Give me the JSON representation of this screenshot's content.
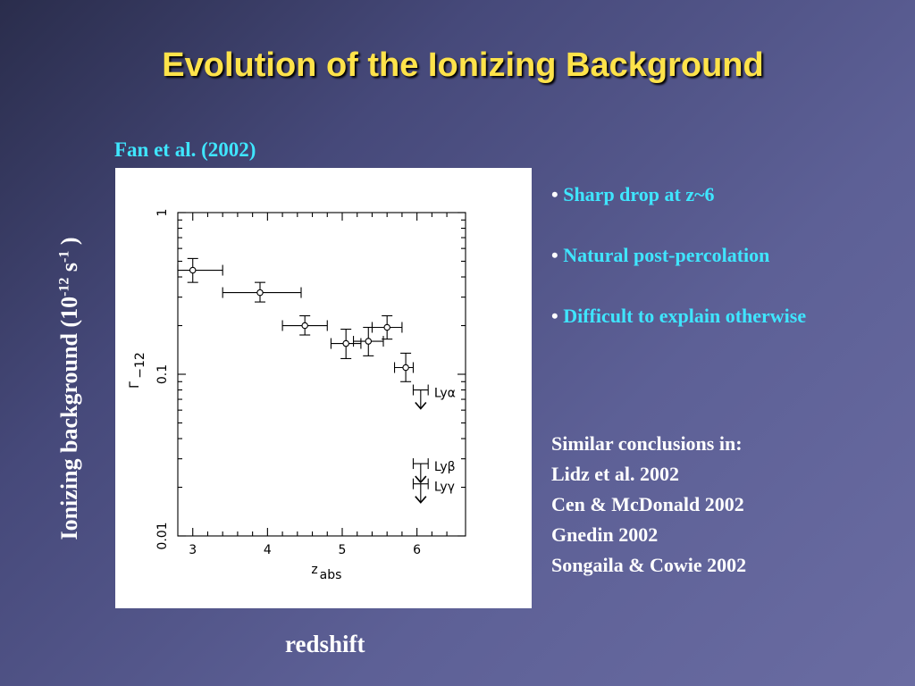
{
  "title": "Evolution of the Ionizing Background",
  "source_label": "Fan et al. (2002)",
  "y_axis_outer": {
    "text": "Ionizing background (10",
    "exp1": "-12",
    "mid": " s",
    "exp2": "-1",
    "end": " )"
  },
  "x_axis_outer": "redshift",
  "bullets": [
    "Sharp drop at z~6",
    "Natural post-percolation",
    "Difficult to explain otherwise"
  ],
  "similar": {
    "heading": "Similar conclusions in:",
    "items": [
      "Lidz et al. 2002",
      "Cen & McDonald 2002",
      "Gnedin 2002",
      "Songaila & Cowie 2002"
    ]
  },
  "chart_data": {
    "type": "scatter",
    "xlabel": "z",
    "xlabel_sub": "abs",
    "ylabel": "Γ",
    "ylabel_sub": "−12",
    "xlim": [
      2.8,
      6.65
    ],
    "ylim": [
      0.01,
      1
    ],
    "yscale": "log",
    "xticks": [
      "3",
      "4",
      "5",
      "6"
    ],
    "yticks": [
      "0.01",
      "0.1",
      "1"
    ],
    "points": [
      {
        "x": 3.0,
        "y": 0.44,
        "xerr": [
          0.2,
          0.4
        ],
        "yerr": [
          0.37,
          0.52
        ]
      },
      {
        "x": 3.9,
        "y": 0.32,
        "xerr": [
          0.5,
          0.55
        ],
        "yerr": [
          0.28,
          0.37
        ]
      },
      {
        "x": 4.5,
        "y": 0.2,
        "xerr": [
          0.3,
          0.3
        ],
        "yerr": [
          0.175,
          0.23
        ]
      },
      {
        "x": 5.05,
        "y": 0.155,
        "xerr": [
          0.2,
          0.2
        ],
        "yerr": [
          0.125,
          0.19
        ]
      },
      {
        "x": 5.35,
        "y": 0.16,
        "xerr": [
          0.2,
          0.2
        ],
        "yerr": [
          0.13,
          0.195
        ]
      },
      {
        "x": 5.6,
        "y": 0.195,
        "xerr": [
          0.2,
          0.2
        ],
        "yerr": [
          0.165,
          0.23
        ]
      },
      {
        "x": 5.85,
        "y": 0.11,
        "xerr": [
          0.15,
          0.1
        ],
        "yerr": [
          0.09,
          0.135
        ]
      }
    ],
    "upper_limits": [
      {
        "x": 6.05,
        "y": 0.08,
        "xerr": [
          0.1,
          0.1
        ],
        "label": "Lyα"
      },
      {
        "x": 6.05,
        "y": 0.028,
        "xerr": [
          0.1,
          0.1
        ],
        "label": "Lyβ"
      },
      {
        "x": 6.05,
        "y": 0.021,
        "xerr": [
          0.1,
          0.1
        ],
        "label": "Lyγ"
      }
    ]
  }
}
